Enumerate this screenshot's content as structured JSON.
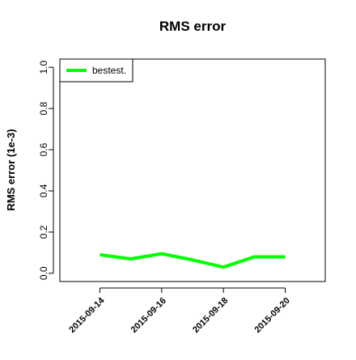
{
  "chart_data": {
    "type": "line",
    "title": "RMS error",
    "y_label": "RMS error (1e-3)",
    "categories": [
      "2015-09-14",
      null,
      "2015-09-16",
      null,
      "2015-09-18",
      null,
      "2015-09-20"
    ],
    "category_label_colors": [
      "#000000",
      null,
      "#000000",
      null,
      "#000000",
      null,
      "#ff0000"
    ],
    "series": [
      {
        "name": "bestest.",
        "color": "#00ff00",
        "values": [
          0.09,
          0.07,
          0.095,
          0.065,
          0.03,
          0.08,
          0.08
        ]
      }
    ],
    "ylim": [
      -0.04,
      1.04
    ],
    "yticks": [
      {
        "value": 0,
        "label": "0.0"
      },
      0.2,
      0.4,
      0.6,
      0.8,
      {
        "value": 1,
        "label": "1.0"
      }
    ],
    "legend": "top-left"
  }
}
